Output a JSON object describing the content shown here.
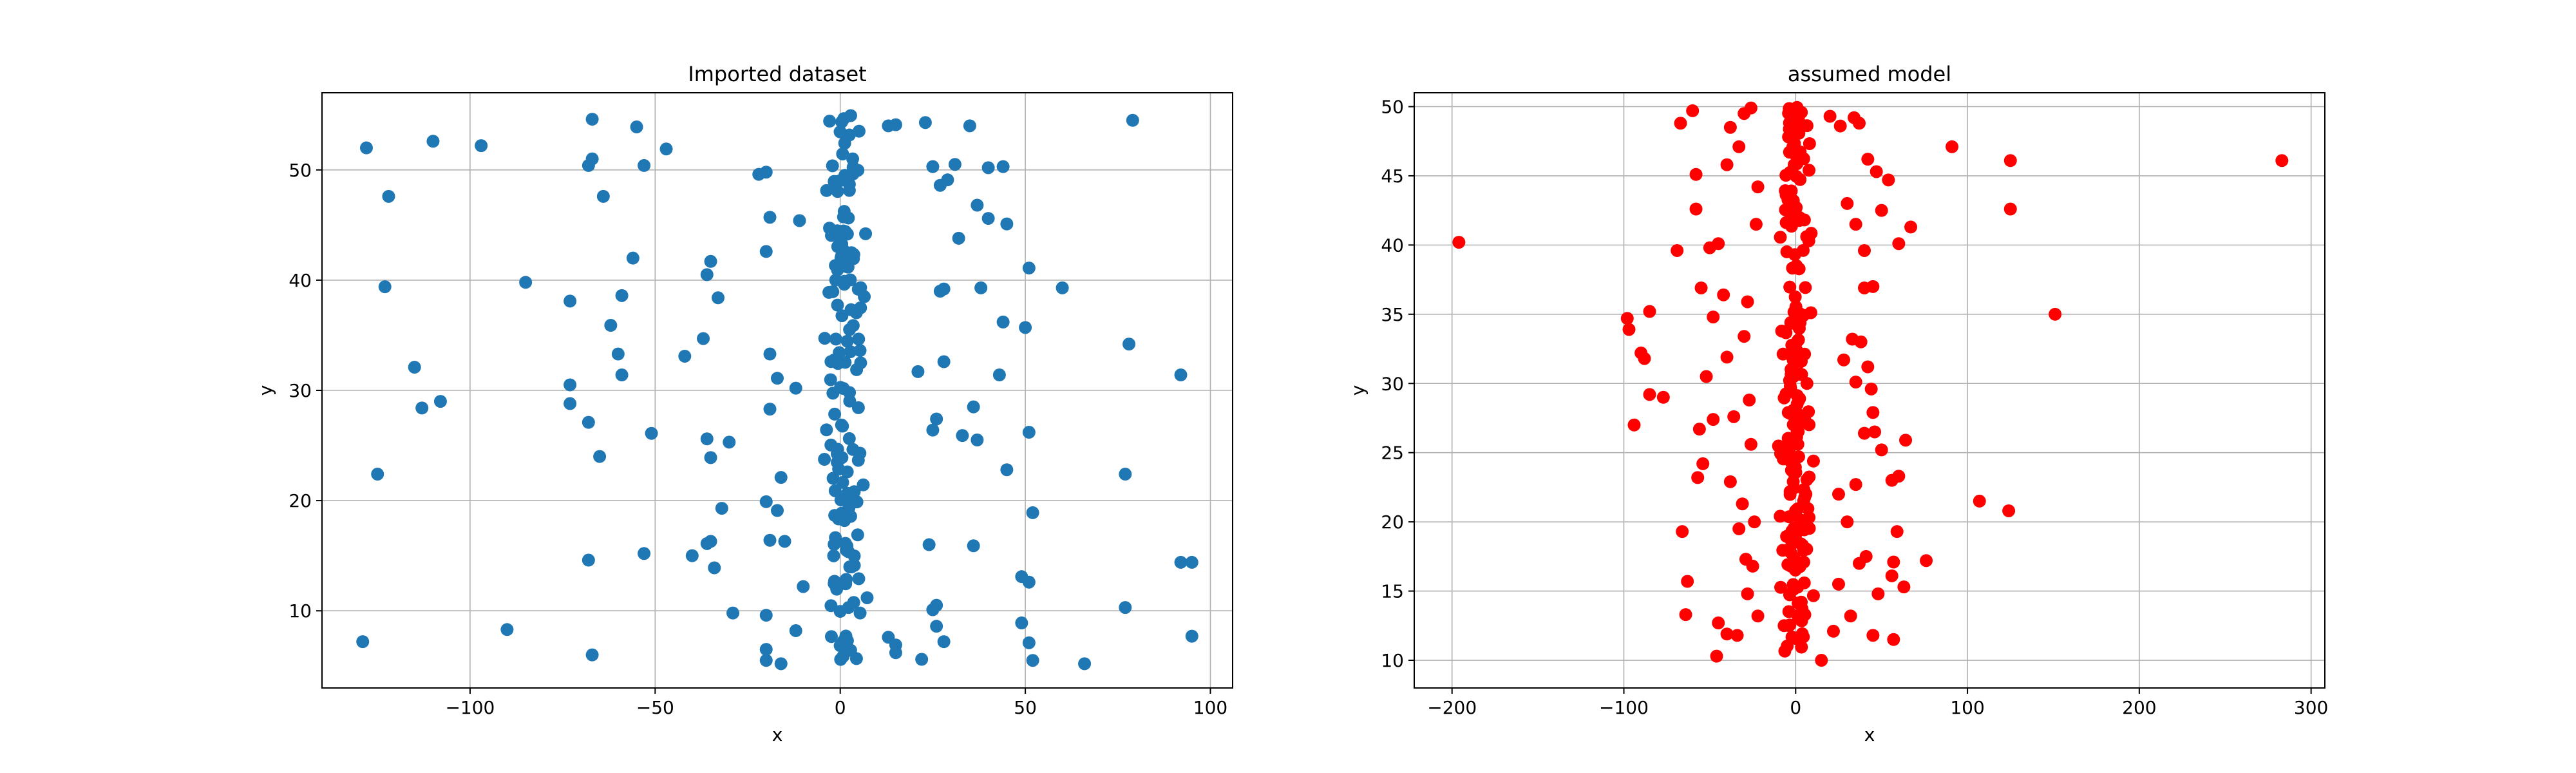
{
  "chart_data": [
    {
      "type": "scatter",
      "title": "Imported dataset",
      "xlabel": "x",
      "ylabel": "y",
      "xlim": [
        -140,
        106
      ],
      "ylim": [
        3.0,
        57.0
      ],
      "xticks": [
        -100,
        -50,
        0,
        50,
        100
      ],
      "yticks": [
        10,
        20,
        30,
        40,
        50
      ],
      "grid": true,
      "color": "#1f77b4",
      "core": {
        "count": 150,
        "x_center": 1.5,
        "x_spread": 2.5,
        "y_min": 5.5,
        "y_max": 55
      },
      "points": [
        [
          -128,
          52
        ],
        [
          -110,
          52.6
        ],
        [
          -97,
          52.2
        ],
        [
          -122,
          47.6
        ],
        [
          -123,
          39.4
        ],
        [
          -85,
          39.8
        ],
        [
          -73,
          38.1
        ],
        [
          -59,
          38.6
        ],
        [
          -56,
          42
        ],
        [
          -36,
          40.5
        ],
        [
          -35,
          41.7
        ],
        [
          -33,
          38.4
        ],
        [
          -67,
          54.6
        ],
        [
          -67,
          51
        ],
        [
          -68,
          50.4
        ],
        [
          -55,
          53.9
        ],
        [
          -53,
          50.4
        ],
        [
          -47,
          51.9
        ],
        [
          -64,
          47.6
        ],
        [
          -115,
          32.1
        ],
        [
          -113,
          28.4
        ],
        [
          -108,
          29
        ],
        [
          -125,
          22.4
        ],
        [
          -129,
          7.2
        ],
        [
          -90,
          8.3
        ],
        [
          -73,
          30.5
        ],
        [
          -73,
          28.8
        ],
        [
          -68,
          27.1
        ],
        [
          -65,
          24
        ],
        [
          -60,
          33.3
        ],
        [
          -59,
          31.4
        ],
        [
          -62,
          35.9
        ],
        [
          -42,
          33.1
        ],
        [
          -37,
          34.7
        ],
        [
          -36,
          25.6
        ],
        [
          -35,
          23.9
        ],
        [
          -30,
          25.3
        ],
        [
          -51,
          26.1
        ],
        [
          -32,
          19.3
        ],
        [
          -40,
          15
        ],
        [
          -36,
          16.1
        ],
        [
          -35,
          16.3
        ],
        [
          -34,
          13.9
        ],
        [
          -29,
          9.8
        ],
        [
          -53,
          15.2
        ],
        [
          -68,
          14.6
        ],
        [
          -67,
          6
        ],
        [
          -22,
          49.6
        ],
        [
          -20,
          49.8
        ],
        [
          -19,
          45.7
        ],
        [
          -20,
          42.6
        ],
        [
          -19,
          33.3
        ],
        [
          -17,
          31.1
        ],
        [
          -19,
          28.3
        ],
        [
          -16,
          22.1
        ],
        [
          -20,
          19.9
        ],
        [
          -17,
          19.1
        ],
        [
          -19,
          16.4
        ],
        [
          -15,
          16.3
        ],
        [
          -20,
          9.6
        ],
        [
          -20,
          6.5
        ],
        [
          -20,
          5.5
        ],
        [
          -16,
          5.2
        ],
        [
          -12,
          8.2
        ],
        [
          -10,
          12.2
        ],
        [
          -12,
          30.2
        ],
        [
          -11,
          45.4
        ],
        [
          13,
          54
        ],
        [
          15,
          54.1
        ],
        [
          23,
          54.3
        ],
        [
          35,
          54
        ],
        [
          25,
          50.3
        ],
        [
          31,
          50.5
        ],
        [
          40,
          50.2
        ],
        [
          44,
          50.3
        ],
        [
          27,
          48.6
        ],
        [
          29,
          49.1
        ],
        [
          37,
          46.8
        ],
        [
          40,
          45.6
        ],
        [
          45,
          45.1
        ],
        [
          32,
          43.8
        ],
        [
          27,
          39
        ],
        [
          28,
          39.2
        ],
        [
          38,
          39.3
        ],
        [
          44,
          36.2
        ],
        [
          50,
          35.7
        ],
        [
          60,
          39.3
        ],
        [
          51,
          41.1
        ],
        [
          28,
          32.6
        ],
        [
          21,
          31.7
        ],
        [
          36,
          28.5
        ],
        [
          43,
          31.4
        ],
        [
          26,
          27.4
        ],
        [
          25,
          26.4
        ],
        [
          33,
          25.9
        ],
        [
          37,
          25.5
        ],
        [
          45,
          22.8
        ],
        [
          51,
          26.2
        ],
        [
          52,
          18.9
        ],
        [
          24,
          16
        ],
        [
          36,
          15.9
        ],
        [
          49,
          13.1
        ],
        [
          51,
          12.6
        ],
        [
          49,
          8.9
        ],
        [
          25,
          10.1
        ],
        [
          26,
          10.5
        ],
        [
          26,
          8.6
        ],
        [
          28,
          7.2
        ],
        [
          22,
          5.6
        ],
        [
          13,
          7.6
        ],
        [
          15,
          6.9
        ],
        [
          15,
          6.2
        ],
        [
          51,
          7.1
        ],
        [
          52,
          5.5
        ],
        [
          66,
          5.2
        ],
        [
          79,
          54.5
        ],
        [
          78,
          34.2
        ],
        [
          77,
          22.4
        ],
        [
          77,
          10.3
        ],
        [
          92,
          31.4
        ],
        [
          92,
          14.4
        ],
        [
          95,
          14.4
        ],
        [
          95,
          7.7
        ]
      ]
    },
    {
      "type": "scatter",
      "title": "assumed model",
      "xlabel": "x",
      "ylabel": "y",
      "xlim": [
        -222,
        308
      ],
      "ylim": [
        8.0,
        51.0
      ],
      "xticks": [
        -200,
        -100,
        0,
        100,
        200,
        300
      ],
      "yticks": [
        10,
        15,
        20,
        25,
        30,
        35,
        40,
        45,
        50
      ],
      "grid": true,
      "color": "#ff0000",
      "core": {
        "count": 210,
        "x_center": 0,
        "x_spread": 4,
        "y_min": 10.5,
        "y_max": 50
      },
      "points": [
        [
          -196,
          40.2
        ],
        [
          -98,
          34.7
        ],
        [
          -97,
          33.9
        ],
        [
          -94,
          27
        ],
        [
          -90,
          32.2
        ],
        [
          -88,
          31.8
        ],
        [
          -85,
          35.2
        ],
        [
          -85,
          29.2
        ],
        [
          -77,
          29
        ],
        [
          -69,
          39.6
        ],
        [
          -67,
          48.8
        ],
        [
          -60,
          49.7
        ],
        [
          -58,
          45.1
        ],
        [
          -58,
          42.6
        ],
        [
          -55,
          36.9
        ],
        [
          -50,
          39.8
        ],
        [
          -66,
          19.3
        ],
        [
          -63,
          15.7
        ],
        [
          -64,
          13.3
        ],
        [
          -57,
          23.2
        ],
        [
          -54,
          24.2
        ],
        [
          -46,
          10.3
        ],
        [
          -45,
          12.7
        ],
        [
          -40,
          11.9
        ],
        [
          -34,
          11.8
        ],
        [
          -28,
          14.8
        ],
        [
          -38,
          22.9
        ],
        [
          -36,
          27.6
        ],
        [
          -40,
          31.9
        ],
        [
          -42,
          36.4
        ],
        [
          -45,
          40.1
        ],
        [
          -40,
          45.8
        ],
        [
          -38,
          48.5
        ],
        [
          -33,
          47.1
        ],
        [
          -30,
          49.5
        ],
        [
          -26,
          49.9
        ],
        [
          -22,
          44.2
        ],
        [
          -23,
          41.5
        ],
        [
          -28,
          35.9
        ],
        [
          -30,
          33.4
        ],
        [
          -27,
          28.8
        ],
        [
          -26,
          25.6
        ],
        [
          -31,
          21.3
        ],
        [
          -29,
          17.3
        ],
        [
          -25,
          16.8
        ],
        [
          -33,
          19.5
        ],
        [
          -22,
          13.2
        ],
        [
          -24,
          20
        ],
        [
          -48,
          34.8
        ],
        [
          -52,
          30.5
        ],
        [
          -48,
          27.4
        ],
        [
          -56,
          26.7
        ],
        [
          20,
          49.3
        ],
        [
          26,
          48.6
        ],
        [
          34,
          49.2
        ],
        [
          37,
          48.8
        ],
        [
          42,
          46.2
        ],
        [
          47,
          45.3
        ],
        [
          54,
          44.7
        ],
        [
          50,
          42.5
        ],
        [
          30,
          43
        ],
        [
          35,
          41.5
        ],
        [
          40,
          39.6
        ],
        [
          40,
          36.9
        ],
        [
          45,
          37
        ],
        [
          60,
          40.1
        ],
        [
          67,
          41.3
        ],
        [
          91,
          47.1
        ],
        [
          33,
          33.2
        ],
        [
          38,
          33
        ],
        [
          42,
          31.2
        ],
        [
          44,
          29.6
        ],
        [
          45,
          27.9
        ],
        [
          28,
          31.7
        ],
        [
          35,
          30.1
        ],
        [
          40,
          26.4
        ],
        [
          46,
          26.5
        ],
        [
          50,
          25.2
        ],
        [
          64,
          25.9
        ],
        [
          56,
          23
        ],
        [
          60,
          23.3
        ],
        [
          59,
          19.3
        ],
        [
          57,
          17.1
        ],
        [
          76,
          17.2
        ],
        [
          56,
          16.1
        ],
        [
          41,
          17.5
        ],
        [
          37,
          17
        ],
        [
          48,
          14.8
        ],
        [
          45,
          11.8
        ],
        [
          57,
          11.5
        ],
        [
          63,
          15.3
        ],
        [
          30,
          20
        ],
        [
          25,
          22
        ],
        [
          35,
          22.7
        ],
        [
          32,
          13.2
        ],
        [
          22,
          12.1
        ],
        [
          25,
          15.5
        ],
        [
          15,
          10
        ],
        [
          125,
          46.1
        ],
        [
          125,
          42.6
        ],
        [
          151,
          35
        ],
        [
          107,
          21.5
        ],
        [
          124,
          20.8
        ],
        [
          283,
          46.1
        ]
      ]
    }
  ]
}
